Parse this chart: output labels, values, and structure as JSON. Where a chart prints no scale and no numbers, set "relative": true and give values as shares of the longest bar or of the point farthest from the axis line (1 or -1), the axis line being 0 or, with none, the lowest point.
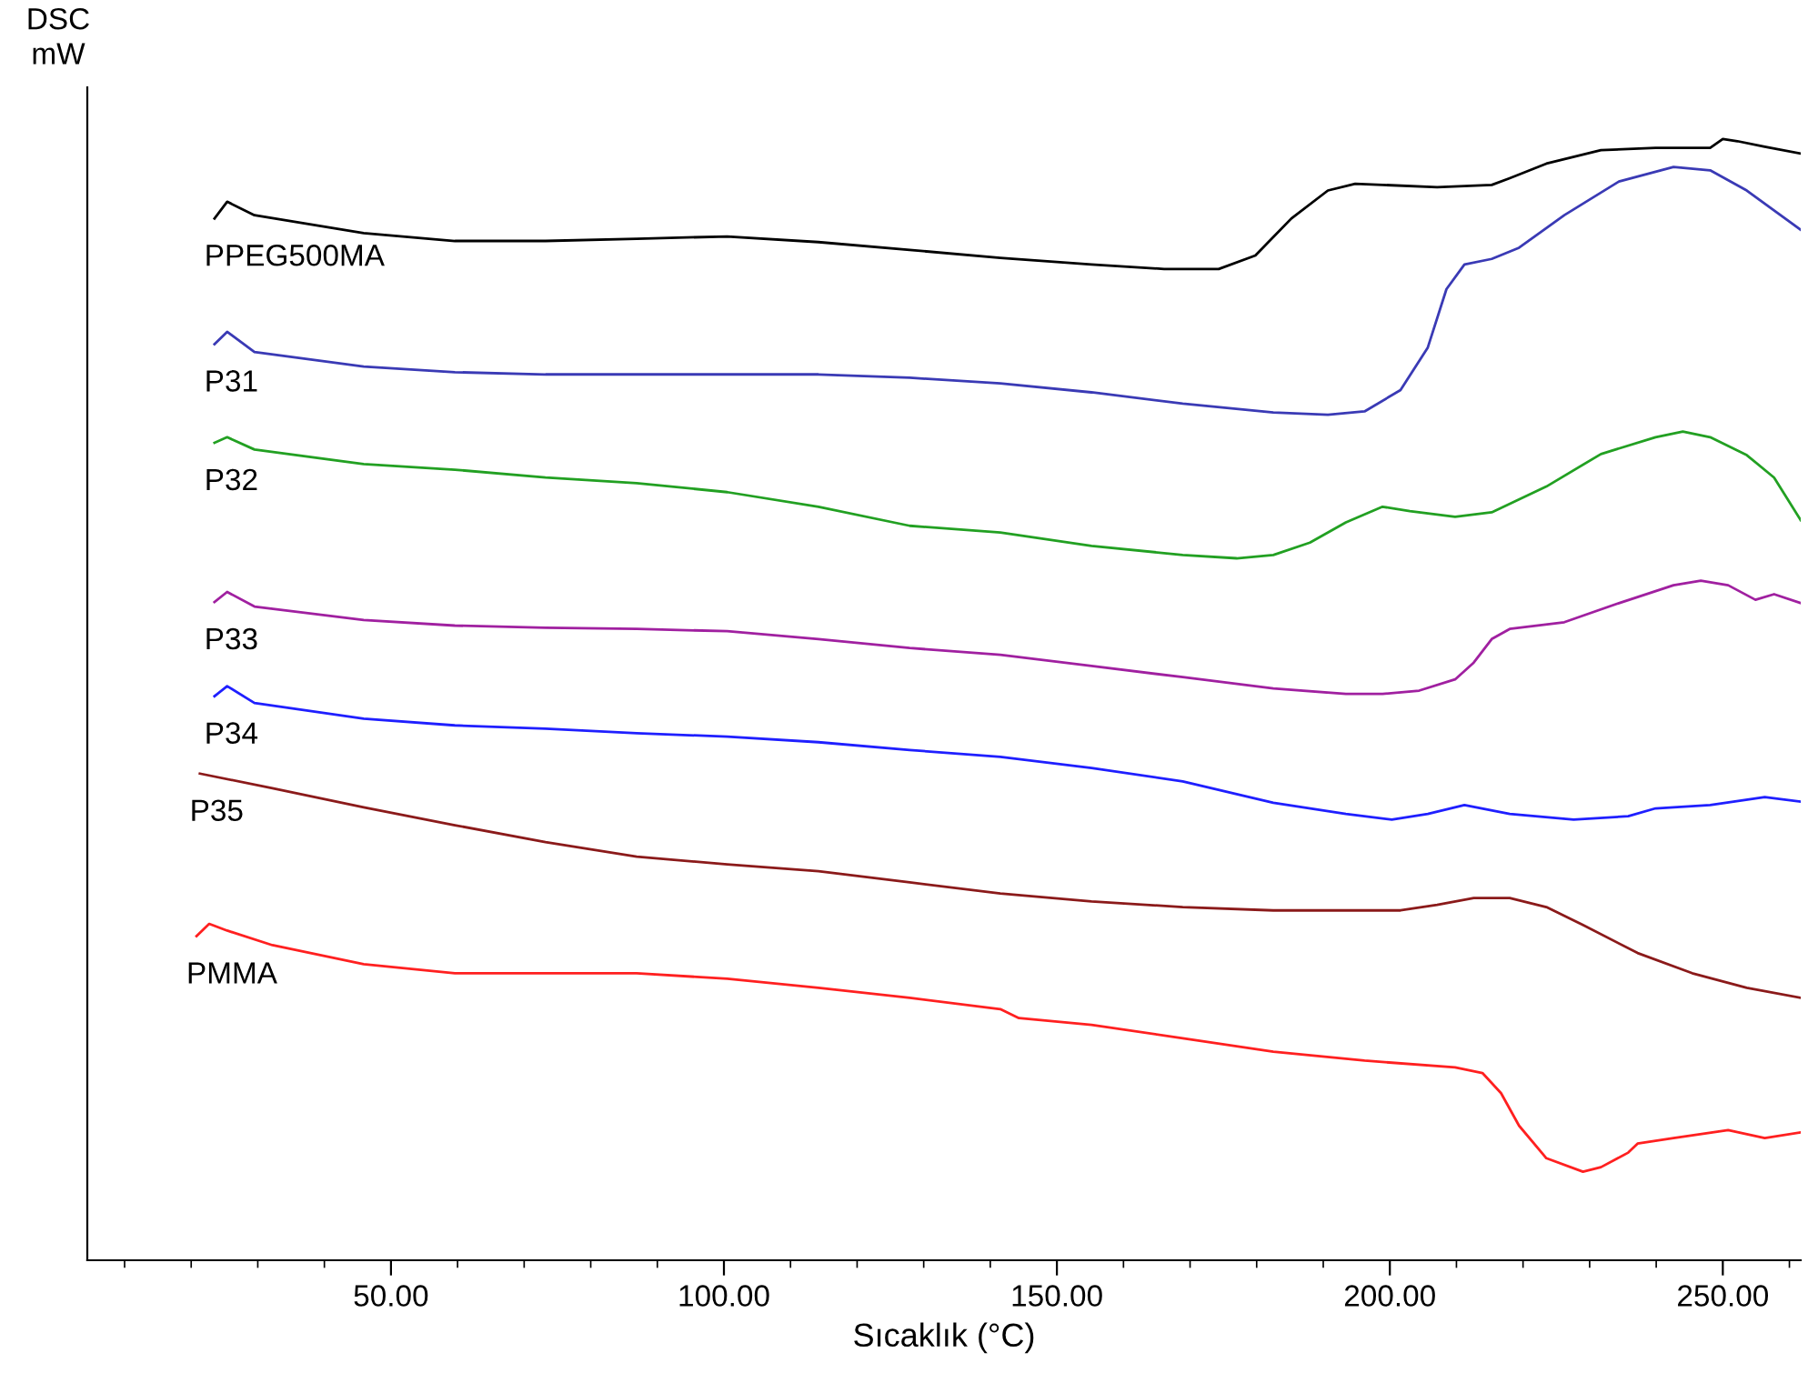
{
  "chart_data": {
    "type": "line",
    "relative": true,
    "xlabel": "Sıcaklık (°C)",
    "ylabel": "DSC\nmW",
    "grid": false,
    "legend": false,
    "marker": "none",
    "line_style": "solid",
    "xlim": [
      4.4,
      261.7
    ],
    "xticks": [
      {
        "value": 10,
        "label": null
      },
      {
        "value": 20,
        "label": null
      },
      {
        "value": 30,
        "label": null
      },
      {
        "value": 40,
        "label": null
      },
      {
        "value": 50,
        "label": "50.00"
      },
      {
        "value": 60,
        "label": null
      },
      {
        "value": 70,
        "label": null
      },
      {
        "value": 80,
        "label": null
      },
      {
        "value": 90,
        "label": null
      },
      {
        "value": 100,
        "label": "100.00"
      },
      {
        "value": 110,
        "label": null
      },
      {
        "value": 120,
        "label": null
      },
      {
        "value": 130,
        "label": null
      },
      {
        "value": 140,
        "label": null
      },
      {
        "value": 150,
        "label": "150.00"
      },
      {
        "value": 160,
        "label": null
      },
      {
        "value": 170,
        "label": null
      },
      {
        "value": 180,
        "label": null
      },
      {
        "value": 190,
        "label": null
      },
      {
        "value": 200,
        "label": "200.00"
      },
      {
        "value": 210,
        "label": null
      },
      {
        "value": 220,
        "label": null
      },
      {
        "value": 230,
        "label": null
      },
      {
        "value": 240,
        "label": null
      },
      {
        "value": 250,
        "label": "250.00"
      },
      {
        "value": 260,
        "label": null
      }
    ],
    "series": [
      {
        "name": "PPEG500MA",
        "color": "#000000",
        "x": [
          23.5,
          25.4,
          29.5,
          45.9,
          59.6,
          73.2,
          86.9,
          100.5,
          114.2,
          127.9,
          141.5,
          155.2,
          166.1,
          174.3,
          179.8,
          185.2,
          190.7,
          194.8,
          198.9,
          207.1,
          215.3,
          218.0,
          223.5,
          231.7,
          239.9,
          248.1,
          250.0,
          252.2,
          256.3,
          261.7
        ],
        "values": [
          0.929,
          0.944,
          0.932,
          0.916,
          0.909,
          0.909,
          0.911,
          0.913,
          0.908,
          0.901,
          0.894,
          0.888,
          0.884,
          0.884,
          0.896,
          0.929,
          0.954,
          0.96,
          0.959,
          0.957,
          0.959,
          0.965,
          0.978,
          0.99,
          0.992,
          0.992,
          1.0,
          0.998,
          0.993,
          0.987
        ]
      },
      {
        "name": "P31",
        "color": "#3a3ab5",
        "x": [
          23.5,
          25.4,
          29.5,
          45.9,
          59.6,
          73.2,
          100.5,
          114.2,
          127.9,
          141.5,
          155.2,
          168.9,
          182.5,
          190.7,
          196.2,
          201.6,
          205.7,
          208.5,
          211.2,
          215.3,
          219.4,
          226.2,
          234.4,
          242.6,
          248.1,
          253.6,
          261.7
        ],
        "values": [
          0.817,
          0.828,
          0.81,
          0.797,
          0.792,
          0.79,
          0.79,
          0.79,
          0.787,
          0.782,
          0.774,
          0.764,
          0.756,
          0.754,
          0.757,
          0.776,
          0.814,
          0.866,
          0.888,
          0.893,
          0.903,
          0.932,
          0.962,
          0.975,
          0.972,
          0.954,
          0.919
        ]
      },
      {
        "name": "P32",
        "color": "#22a022",
        "x": [
          23.5,
          25.4,
          29.5,
          45.9,
          59.6,
          73.2,
          86.9,
          100.5,
          114.2,
          127.9,
          141.5,
          155.2,
          168.9,
          177.0,
          182.5,
          188.0,
          193.4,
          198.9,
          203.0,
          209.8,
          215.3,
          223.5,
          231.7,
          239.9,
          244.0,
          248.1,
          253.6,
          257.7,
          261.7
        ],
        "values": [
          0.729,
          0.734,
          0.723,
          0.71,
          0.705,
          0.698,
          0.693,
          0.685,
          0.672,
          0.655,
          0.649,
          0.637,
          0.629,
          0.626,
          0.629,
          0.64,
          0.658,
          0.672,
          0.668,
          0.663,
          0.667,
          0.69,
          0.719,
          0.734,
          0.739,
          0.734,
          0.718,
          0.698,
          0.66
        ]
      },
      {
        "name": "P33",
        "color": "#a020a0",
        "x": [
          23.5,
          25.4,
          29.5,
          45.9,
          59.6,
          73.2,
          86.9,
          100.5,
          114.2,
          127.9,
          141.5,
          155.2,
          168.9,
          182.5,
          193.4,
          198.9,
          204.4,
          209.8,
          212.6,
          215.3,
          218.0,
          226.2,
          234.4,
          242.6,
          246.7,
          250.8,
          254.9,
          257.7,
          261.7
        ],
        "values": [
          0.587,
          0.596,
          0.583,
          0.571,
          0.566,
          0.564,
          0.563,
          0.561,
          0.554,
          0.546,
          0.54,
          0.53,
          0.52,
          0.51,
          0.505,
          0.505,
          0.508,
          0.518,
          0.533,
          0.554,
          0.563,
          0.569,
          0.586,
          0.602,
          0.606,
          0.602,
          0.589,
          0.594,
          0.586
        ]
      },
      {
        "name": "P34",
        "color": "#1f1fff",
        "x": [
          23.5,
          25.4,
          29.5,
          45.9,
          59.6,
          73.2,
          86.9,
          100.5,
          114.2,
          127.9,
          141.5,
          155.2,
          168.9,
          182.5,
          193.4,
          200.3,
          205.7,
          211.2,
          218.0,
          227.6,
          235.8,
          239.9,
          248.1,
          256.3,
          261.7
        ],
        "values": [
          0.503,
          0.512,
          0.497,
          0.483,
          0.477,
          0.474,
          0.47,
          0.467,
          0.462,
          0.455,
          0.449,
          0.439,
          0.427,
          0.408,
          0.398,
          0.393,
          0.398,
          0.406,
          0.398,
          0.393,
          0.396,
          0.403,
          0.406,
          0.413,
          0.409
        ]
      },
      {
        "name": "P35",
        "color": "#8b1a1a",
        "x": [
          21.3,
          32.2,
          45.9,
          59.6,
          73.2,
          86.9,
          100.5,
          114.2,
          127.9,
          141.5,
          155.2,
          168.9,
          182.5,
          196.2,
          201.6,
          207.1,
          212.6,
          218.0,
          223.5,
          229.0,
          237.2,
          245.4,
          253.6,
          261.7
        ],
        "values": [
          0.434,
          0.421,
          0.404,
          0.388,
          0.373,
          0.36,
          0.353,
          0.347,
          0.337,
          0.327,
          0.32,
          0.315,
          0.312,
          0.312,
          0.312,
          0.317,
          0.323,
          0.323,
          0.315,
          0.299,
          0.274,
          0.256,
          0.243,
          0.234
        ]
      },
      {
        "name": "PMMA",
        "color": "#ff2020",
        "x": [
          20.8,
          22.7,
          25.4,
          32.2,
          45.9,
          59.6,
          73.2,
          86.9,
          100.5,
          114.2,
          127.9,
          141.5,
          144.3,
          155.2,
          168.9,
          182.5,
          196.2,
          209.8,
          213.9,
          216.7,
          219.4,
          223.5,
          229.0,
          231.7,
          235.8,
          237.2,
          242.6,
          250.8,
          256.3,
          261.7
        ],
        "values": [
          0.289,
          0.3,
          0.294,
          0.281,
          0.264,
          0.256,
          0.256,
          0.256,
          0.251,
          0.243,
          0.234,
          0.224,
          0.216,
          0.21,
          0.198,
          0.186,
          0.178,
          0.172,
          0.167,
          0.149,
          0.12,
          0.091,
          0.079,
          0.083,
          0.096,
          0.104,
          0.109,
          0.116,
          0.109,
          0.114
        ]
      }
    ]
  }
}
